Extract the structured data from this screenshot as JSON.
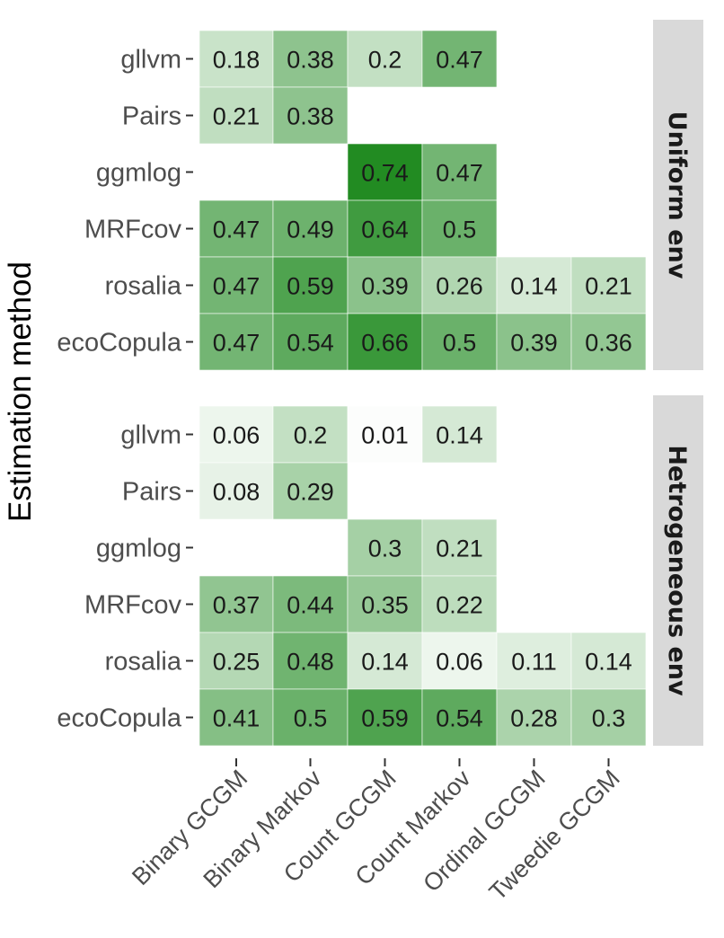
{
  "chart_data": {
    "type": "heatmap",
    "ylabel": "Estimation method",
    "xlabel": "",
    "x_categories": [
      "Binary GCGM",
      "Binary Markov",
      "Count GCGM",
      "Count Markov",
      "Ordinal GCGM",
      "Tweedie GCGM"
    ],
    "y_categories": [
      "gllvm",
      "Pairs",
      "ggmlog",
      "MRFcov",
      "rosalia",
      "ecoCopula"
    ],
    "facets": [
      {
        "label": "Uniform env",
        "values": [
          [
            0.18,
            0.38,
            0.2,
            0.47,
            null,
            null
          ],
          [
            0.21,
            0.38,
            null,
            null,
            null,
            null
          ],
          [
            null,
            null,
            0.74,
            0.47,
            null,
            null
          ],
          [
            0.47,
            0.49,
            0.64,
            0.5,
            null,
            null
          ],
          [
            0.47,
            0.59,
            0.39,
            0.26,
            0.14,
            0.21
          ],
          [
            0.47,
            0.54,
            0.66,
            0.5,
            0.39,
            0.36
          ]
        ]
      },
      {
        "label": "Hetrogeneous env",
        "values": [
          [
            0.06,
            0.2,
            0.01,
            0.14,
            null,
            null
          ],
          [
            0.08,
            0.29,
            null,
            null,
            null,
            null
          ],
          [
            null,
            null,
            0.3,
            0.21,
            null,
            null
          ],
          [
            0.37,
            0.44,
            0.35,
            0.22,
            null,
            null
          ],
          [
            0.25,
            0.48,
            0.14,
            0.06,
            0.11,
            0.14
          ],
          [
            0.41,
            0.5,
            0.59,
            0.54,
            0.28,
            0.3
          ]
        ]
      }
    ],
    "color_low": "#ffffff",
    "color_high": "#228b22",
    "legend": "none"
  }
}
